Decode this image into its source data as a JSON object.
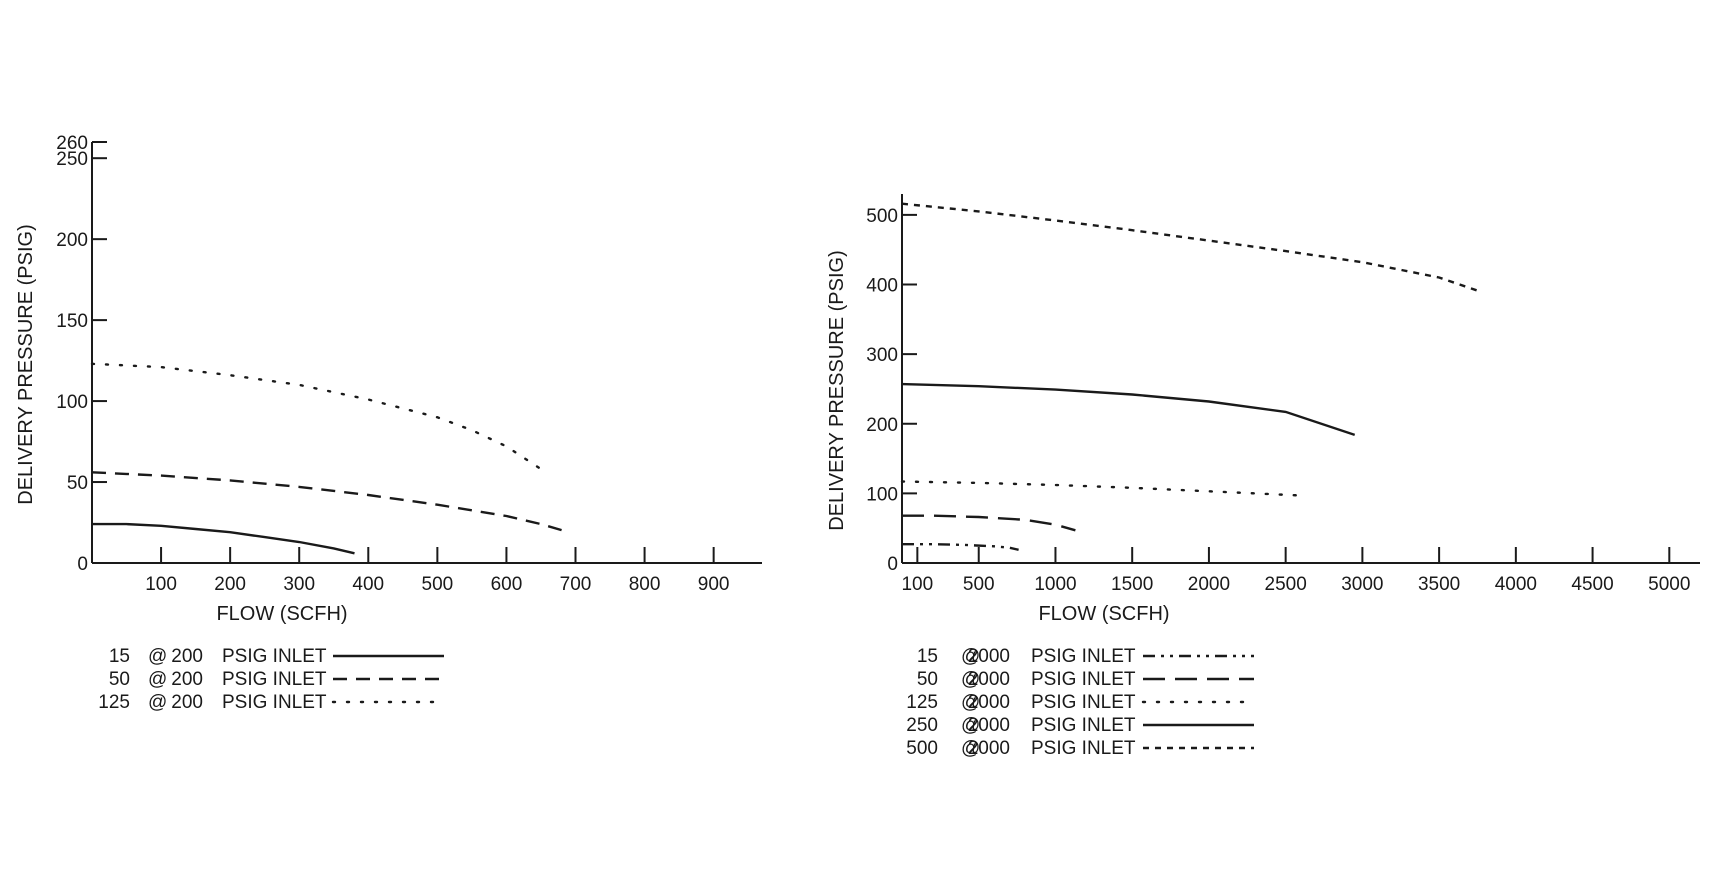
{
  "chart_data": [
    {
      "type": "line",
      "title": "",
      "xlabel": "FLOW (SCFH)",
      "ylabel": "DELIVERY PRESSURE (PSIG)",
      "xlim": [
        0,
        970
      ],
      "ylim": [
        0,
        260
      ],
      "xticks": [
        100,
        200,
        300,
        400,
        500,
        600,
        700,
        800,
        900
      ],
      "yticks": [
        0,
        50,
        100,
        150,
        200,
        250,
        260
      ],
      "grid": false,
      "legend_position": "bottom-left",
      "series": [
        {
          "name": "15 @ 200 PSIG INLET",
          "legend": {
            "a": "15",
            "at": "@",
            "b": "200",
            "c": "PSIG INLET"
          },
          "style": "solid",
          "x": [
            0,
            50,
            100,
            150,
            200,
            250,
            300,
            350,
            380
          ],
          "y": [
            24,
            24,
            23,
            21,
            19,
            16,
            13,
            9,
            6
          ]
        },
        {
          "name": "50 @ 200 PSIG INLET",
          "legend": {
            "a": "50",
            "at": "@",
            "b": "200",
            "c": "PSIG INLET"
          },
          "style": "dashed",
          "x": [
            0,
            100,
            200,
            300,
            400,
            500,
            600,
            650,
            690
          ],
          "y": [
            56,
            54,
            51,
            47,
            42,
            36,
            29,
            24,
            19
          ]
        },
        {
          "name": "125 @ 200 PSIG INLET",
          "legend": {
            "a": "125",
            "at": "@",
            "b": "200",
            "c": "PSIG INLET"
          },
          "style": "dotted",
          "x": [
            0,
            100,
            200,
            300,
            400,
            500,
            550,
            600,
            650
          ],
          "y": [
            123,
            121,
            116,
            110,
            101,
            90,
            82,
            72,
            58
          ]
        }
      ]
    },
    {
      "type": "line",
      "title": "",
      "xlabel": "FLOW (SCFH)",
      "ylabel": "DELIVERY PRESSURE (PSIG)",
      "xlim": [
        0,
        5200
      ],
      "ylim": [
        0,
        530
      ],
      "xticks": [
        100,
        500,
        1000,
        1500,
        2000,
        2500,
        3000,
        3500,
        4000,
        4500,
        5000
      ],
      "yticks": [
        0,
        100,
        200,
        300,
        400,
        500
      ],
      "grid": false,
      "legend_position": "bottom-left",
      "series": [
        {
          "name": "15 @ 2000 PSIG INLET",
          "legend": {
            "a": "15",
            "at": "@",
            "b": "2000",
            "c": "PSIG INLET"
          },
          "style": "dashdotdot",
          "x": [
            0,
            200,
            400,
            600,
            700,
            760
          ],
          "y": [
            27,
            27,
            26,
            24,
            22,
            19
          ]
        },
        {
          "name": "50 @ 2000 PSIG INLET",
          "legend": {
            "a": "50",
            "at": "@",
            "b": "2000",
            "c": "PSIG INLET"
          },
          "style": "longdash",
          "x": [
            0,
            200,
            500,
            800,
            1000,
            1130
          ],
          "y": [
            68,
            68,
            66,
            62,
            55,
            47
          ]
        },
        {
          "name": "125 @ 2000 PSIG INLET",
          "legend": {
            "a": "125",
            "at": "@",
            "b": "2000",
            "c": "PSIG INLET"
          },
          "style": "dotted",
          "x": [
            0,
            500,
            1000,
            1500,
            2000,
            2600
          ],
          "y": [
            117,
            115,
            112,
            108,
            103,
            97
          ]
        },
        {
          "name": "250 @ 2000 PSIG INLET",
          "legend": {
            "a": "250",
            "at": "@",
            "b": "2000",
            "c": "PSIG INLET"
          },
          "style": "solid",
          "x": [
            0,
            500,
            1000,
            1500,
            2000,
            2500,
            2950
          ],
          "y": [
            257,
            254,
            249,
            242,
            232,
            217,
            184
          ]
        },
        {
          "name": "500 @ 2000 PSIG INLET",
          "legend": {
            "a": "500",
            "at": "@",
            "b": "2000",
            "c": "PSIG INLET"
          },
          "style": "shortdash",
          "x": [
            0,
            500,
            1000,
            1500,
            2000,
            2500,
            3000,
            3500,
            3780
          ],
          "y": [
            516,
            505,
            492,
            478,
            463,
            448,
            432,
            410,
            389
          ]
        }
      ]
    }
  ]
}
